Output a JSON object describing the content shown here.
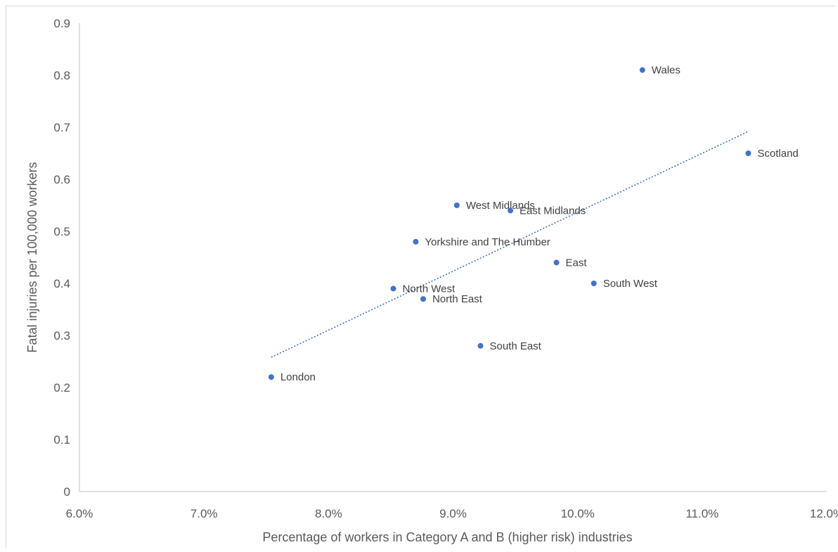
{
  "chart_data": {
    "type": "scatter",
    "title": "",
    "xlabel": "Percentage of workers in Category A and B (higher risk) industries",
    "ylabel": "Fatal injuries per 100,000 workers",
    "xlim": [
      0.06,
      0.12
    ],
    "ylim": [
      0,
      0.9
    ],
    "x_ticks": [
      0.06,
      0.07,
      0.08,
      0.09,
      0.1,
      0.11,
      0.12
    ],
    "x_tick_labels": [
      "6.0%",
      "7.0%",
      "8.0%",
      "9.0%",
      "10.0%",
      "11.0%",
      "12.0%"
    ],
    "y_ticks": [
      0,
      0.1,
      0.2,
      0.3,
      0.4,
      0.5,
      0.6,
      0.7,
      0.8,
      0.9
    ],
    "y_tick_labels": [
      "0",
      "0.1",
      "0.2",
      "0.3",
      "0.4",
      "0.5",
      "0.6",
      "0.7",
      "0.8",
      "0.9"
    ],
    "grid": false,
    "legend": "none",
    "marker_color": "#4472c4",
    "trendline": {
      "type": "linear",
      "style": "dotted",
      "color": "#4472c4",
      "x_range": [
        0.0754,
        0.1137
      ],
      "y_range": [
        0.258,
        0.692
      ]
    },
    "points": [
      {
        "label": "London",
        "x": 0.0754,
        "y": 0.22
      },
      {
        "label": "North West",
        "x": 0.0852,
        "y": 0.39
      },
      {
        "label": "Yorkshire and The Humber",
        "x": 0.087,
        "y": 0.48
      },
      {
        "label": "North East",
        "x": 0.0876,
        "y": 0.37
      },
      {
        "label": "West Midlands",
        "x": 0.0903,
        "y": 0.55
      },
      {
        "label": "South East",
        "x": 0.0922,
        "y": 0.28
      },
      {
        "label": "East Midlands",
        "x": 0.0946,
        "y": 0.54
      },
      {
        "label": "East",
        "x": 0.0983,
        "y": 0.44
      },
      {
        "label": "South West",
        "x": 0.1013,
        "y": 0.4
      },
      {
        "label": "Wales",
        "x": 0.1052,
        "y": 0.81
      },
      {
        "label": "Scotland",
        "x": 0.1137,
        "y": 0.65
      }
    ]
  }
}
